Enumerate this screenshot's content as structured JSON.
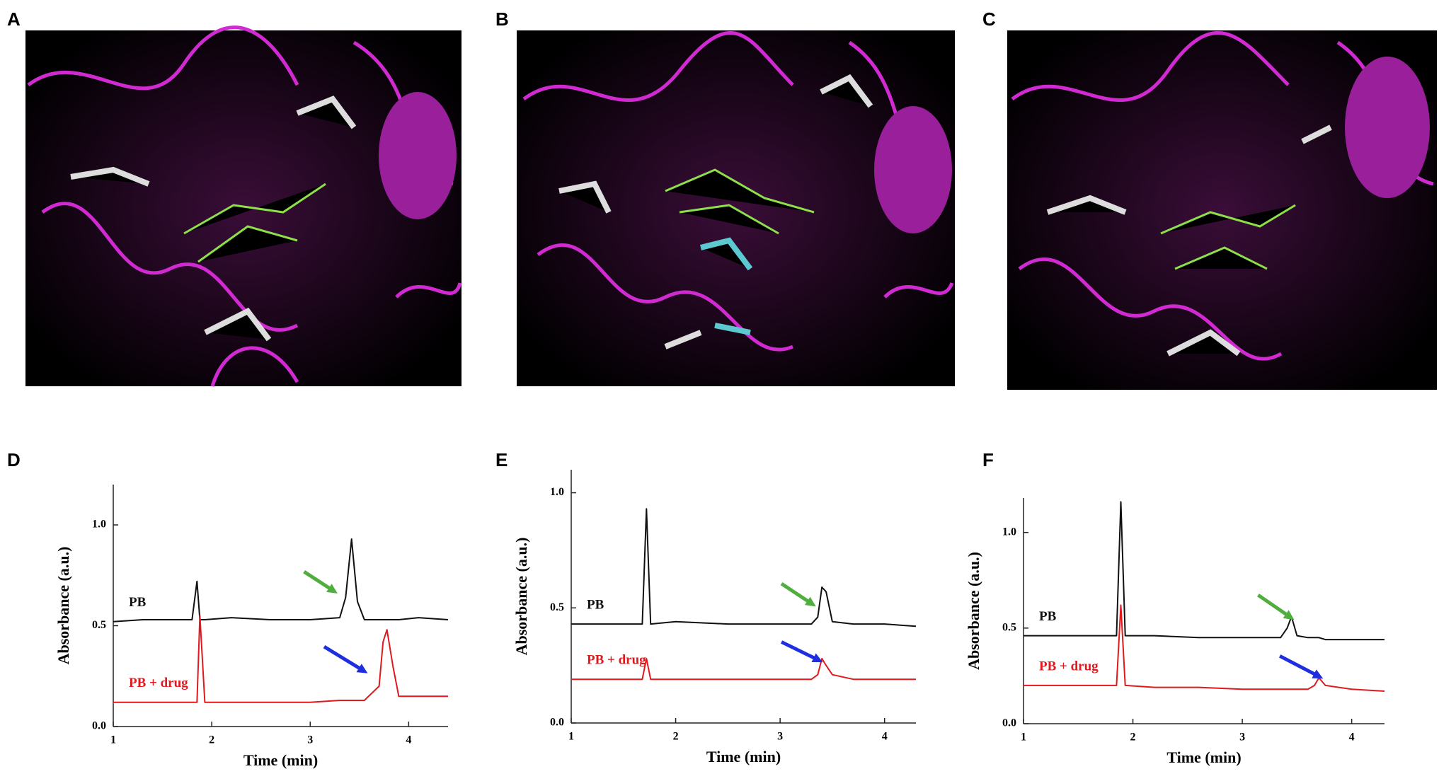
{
  "figure_panels": [
    {
      "label": "A"
    },
    {
      "label": "B"
    },
    {
      "label": "C"
    }
  ],
  "chart_data": [
    {
      "type": "line",
      "panel": "D",
      "x_label": "Time (min)",
      "y_label": "Absorbance (a.u.)",
      "x": [
        1,
        1.3,
        1.6,
        1.8,
        1.85,
        1.88,
        1.93,
        2.2,
        2.6,
        3.0,
        3.3,
        3.36,
        3.42,
        3.48,
        3.55,
        3.7,
        3.74,
        3.78,
        3.84,
        3.9,
        4.1,
        4.4
      ],
      "series": [
        {
          "name": "PB",
          "color": "#111111",
          "values": [
            0.52,
            0.53,
            0.53,
            0.53,
            0.72,
            0.53,
            0.53,
            0.54,
            0.53,
            0.53,
            0.54,
            0.64,
            0.93,
            0.62,
            0.53,
            0.53,
            0.53,
            0.53,
            0.53,
            0.53,
            0.54,
            0.53
          ]
        },
        {
          "name": "PB + drug",
          "color": "#e0191e",
          "values": [
            0.12,
            0.12,
            0.12,
            0.12,
            0.12,
            0.55,
            0.12,
            0.12,
            0.12,
            0.12,
            0.13,
            0.13,
            0.13,
            0.13,
            0.13,
            0.2,
            0.42,
            0.48,
            0.3,
            0.15,
            0.15,
            0.15
          ]
        }
      ],
      "xlim": [
        1,
        4.4
      ],
      "xticks": [
        1,
        2,
        3,
        4
      ],
      "ylim": [
        0,
        1.2
      ],
      "yticks": [
        {
          "value": 0,
          "label": "0.0"
        },
        {
          "value": 0.5,
          "label": "0.5"
        },
        {
          "value": 1,
          "label": "1.0"
        }
      ]
    },
    {
      "type": "line",
      "panel": "E",
      "x_label": "Time (min)",
      "y_label": "Absorbance (a.u.)",
      "x": [
        1,
        1.3,
        1.6,
        1.68,
        1.72,
        1.76,
        2.0,
        2.5,
        3.0,
        3.3,
        3.36,
        3.4,
        3.44,
        3.5,
        3.7,
        4.0,
        4.3
      ],
      "series": [
        {
          "name": "PB",
          "color": "#111111",
          "values": [
            0.43,
            0.43,
            0.43,
            0.43,
            0.93,
            0.43,
            0.44,
            0.43,
            0.43,
            0.43,
            0.46,
            0.59,
            0.57,
            0.44,
            0.43,
            0.43,
            0.42
          ]
        },
        {
          "name": "PB + drug",
          "color": "#e0191e",
          "values": [
            0.19,
            0.19,
            0.19,
            0.19,
            0.28,
            0.19,
            0.19,
            0.19,
            0.19,
            0.19,
            0.21,
            0.28,
            0.25,
            0.21,
            0.19,
            0.19,
            0.19
          ]
        }
      ],
      "xlim": [
        1,
        4.3
      ],
      "xticks": [
        1,
        2,
        3,
        4
      ],
      "ylim": [
        0,
        1.1
      ],
      "yticks": [
        {
          "value": 0,
          "label": "0.0"
        },
        {
          "value": 0.5,
          "label": "0.5"
        },
        {
          "value": 1,
          "label": "1.0"
        }
      ]
    },
    {
      "type": "line",
      "panel": "F",
      "x_label": "Time (min)",
      "y_label": "Absorbance (a.u.)",
      "x": [
        1,
        1.3,
        1.6,
        1.85,
        1.89,
        1.93,
        2.2,
        2.6,
        3.0,
        3.35,
        3.41,
        3.45,
        3.5,
        3.6,
        3.66,
        3.7,
        3.76,
        4.0,
        4.3
      ],
      "series": [
        {
          "name": "PB",
          "color": "#111111",
          "values": [
            0.46,
            0.46,
            0.46,
            0.46,
            1.16,
            0.46,
            0.46,
            0.45,
            0.45,
            0.45,
            0.5,
            0.56,
            0.46,
            0.45,
            0.45,
            0.45,
            0.44,
            0.44,
            0.44
          ]
        },
        {
          "name": "PB + drug",
          "color": "#e0191e",
          "values": [
            0.2,
            0.2,
            0.2,
            0.2,
            0.62,
            0.2,
            0.19,
            0.19,
            0.18,
            0.18,
            0.18,
            0.18,
            0.18,
            0.18,
            0.2,
            0.24,
            0.2,
            0.18,
            0.17
          ]
        }
      ],
      "xlim": [
        1,
        4.3
      ],
      "xticks": [
        1,
        2,
        3,
        4
      ],
      "ylim": [
        0,
        1.18
      ],
      "yticks": [
        {
          "value": 0,
          "label": "0.0"
        },
        {
          "value": 0.5,
          "label": "0.5"
        },
        {
          "value": 1,
          "label": "1.0"
        }
      ]
    }
  ]
}
